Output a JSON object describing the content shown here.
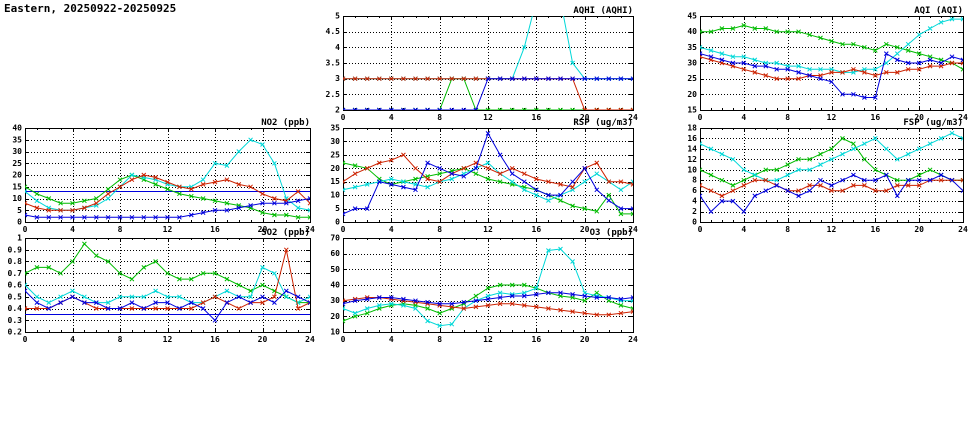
{
  "title": "Eastern, 20250922-20250925",
  "series_colors": {
    "blue": "#0000dd",
    "red": "#cc2200",
    "green": "#00bb00",
    "cyan": "#00d8d8"
  },
  "chart_data": [
    {
      "id": "aqhi",
      "type": "line",
      "title": "AQHI (AQHI)",
      "x_min": 0,
      "x_max": 24,
      "x_ticks": [
        0,
        4,
        8,
        12,
        16,
        20,
        24
      ],
      "x_tick_labels": [
        "0",
        "4",
        "8",
        "12",
        "16",
        "20",
        "24"
      ],
      "y_min": 2,
      "y_max": 5,
      "y_ticks": [
        2,
        2.5,
        3,
        3.5,
        4,
        4.5,
        5
      ],
      "y_tick_labels": [
        "2",
        "2.5",
        "3",
        "3.5",
        "4",
        "4.5",
        "5"
      ],
      "series": [
        {
          "color": "green",
          "values": [
            2,
            2,
            2,
            2,
            2,
            2,
            2,
            2,
            2,
            3,
            3,
            2,
            2,
            2,
            2,
            2,
            2,
            2,
            2,
            2,
            2,
            2,
            2,
            2,
            2
          ]
        },
        {
          "color": "cyan",
          "values": [
            3,
            3,
            3,
            3,
            3,
            3,
            3,
            3,
            3,
            3,
            3,
            3,
            3,
            3,
            3,
            4,
            5.5,
            6,
            5.5,
            3.5,
            3,
            3,
            3,
            3,
            3
          ]
        },
        {
          "color": "red",
          "values": [
            3,
            3,
            3,
            3,
            3,
            3,
            3,
            3,
            3,
            3,
            3,
            3,
            3,
            3,
            3,
            3,
            3,
            3,
            3,
            3,
            2,
            2,
            2,
            2,
            2
          ]
        },
        {
          "color": "blue",
          "values": [
            2,
            2,
            2,
            2,
            2,
            2,
            2,
            2,
            2,
            2,
            2,
            2,
            3,
            3,
            3,
            3,
            3,
            3,
            3,
            3,
            3,
            3,
            3,
            3,
            3
          ]
        }
      ]
    },
    {
      "id": "aqi",
      "type": "line",
      "title": "AQI (AQI)",
      "x_min": 0,
      "x_max": 24,
      "x_ticks": [
        0,
        4,
        8,
        12,
        16,
        20,
        24
      ],
      "x_tick_labels": [
        "0",
        "4",
        "8",
        "12",
        "16",
        "20",
        "24"
      ],
      "y_min": 15,
      "y_max": 45,
      "y_ticks": [
        15,
        20,
        25,
        30,
        35,
        40,
        45
      ],
      "y_tick_labels": [
        "15",
        "20",
        "25",
        "30",
        "35",
        "40",
        "45"
      ],
      "series": [
        {
          "color": "green",
          "values": [
            40,
            40,
            41,
            41,
            42,
            41,
            41,
            40,
            40,
            40,
            39,
            38,
            37,
            36,
            36,
            35,
            34,
            36,
            35,
            34,
            33,
            32,
            31,
            30,
            28
          ]
        },
        {
          "color": "cyan",
          "values": [
            35,
            34,
            33,
            32,
            32,
            31,
            30,
            30,
            29,
            29,
            28,
            28,
            28,
            27,
            27,
            28,
            28,
            30,
            33,
            36,
            39,
            41,
            43,
            44,
            44
          ]
        },
        {
          "color": "red",
          "values": [
            32,
            31,
            30,
            29,
            28,
            27,
            26,
            25,
            25,
            25,
            26,
            26,
            27,
            27,
            28,
            27,
            26,
            27,
            27,
            28,
            28,
            29,
            29,
            30,
            30
          ]
        },
        {
          "color": "blue",
          "values": [
            33,
            32,
            31,
            30,
            30,
            29,
            29,
            28,
            28,
            27,
            26,
            25,
            24,
            20,
            20,
            19,
            19,
            33,
            31,
            30,
            30,
            31,
            30,
            32,
            31
          ]
        }
      ]
    },
    {
      "id": "no2",
      "type": "line",
      "title": "NO2 (ppb)",
      "x_min": 0,
      "x_max": 24,
      "x_ticks": [
        0,
        4,
        8,
        12,
        16,
        20,
        24
      ],
      "x_tick_labels": [
        "0",
        "4",
        "8",
        "12",
        "16",
        "20",
        "24"
      ],
      "y_min": 0,
      "y_max": 40,
      "y_ticks": [
        0,
        5,
        10,
        15,
        20,
        25,
        30,
        35,
        40
      ],
      "y_tick_labels": [
        "0",
        "5",
        "10",
        "15",
        "20",
        "25",
        "30",
        "35",
        "40"
      ],
      "ref_line": 13,
      "series": [
        {
          "color": "green",
          "values": [
            15,
            12,
            10,
            8,
            8,
            9,
            10,
            14,
            18,
            20,
            18,
            16,
            14,
            12,
            11,
            10,
            9,
            8,
            7,
            6,
            4,
            3,
            3,
            2,
            2
          ]
        },
        {
          "color": "cyan",
          "values": [
            13,
            9,
            6,
            5,
            5,
            6,
            7,
            10,
            15,
            20,
            19,
            18,
            16,
            15,
            15,
            18,
            25,
            24,
            30,
            35,
            33,
            25,
            10,
            6,
            5
          ]
        },
        {
          "color": "red",
          "values": [
            8,
            6,
            5,
            5,
            5,
            6,
            8,
            12,
            15,
            18,
            20,
            19,
            17,
            15,
            14,
            16,
            17,
            18,
            16,
            15,
            12,
            10,
            9,
            13,
            8
          ]
        },
        {
          "color": "blue",
          "values": [
            3,
            2,
            2,
            2,
            2,
            2,
            2,
            2,
            2,
            2,
            2,
            2,
            2,
            2,
            3,
            4,
            5,
            5,
            6,
            7,
            8,
            8,
            8,
            9,
            10
          ]
        }
      ]
    },
    {
      "id": "rsp",
      "type": "line",
      "title": "RSP (ug/m3)",
      "x_min": 0,
      "x_max": 24,
      "x_ticks": [
        0,
        4,
        8,
        12,
        16,
        20,
        24
      ],
      "x_tick_labels": [
        "0",
        "4",
        "8",
        "12",
        "16",
        "20",
        "24"
      ],
      "y_min": 0,
      "y_max": 35,
      "y_ticks": [
        0,
        5,
        10,
        15,
        20,
        25,
        30,
        35
      ],
      "y_tick_labels": [
        "0",
        "5",
        "10",
        "15",
        "20",
        "25",
        "30",
        "35"
      ],
      "series": [
        {
          "color": "green",
          "values": [
            22,
            21,
            20,
            16,
            14,
            15,
            16,
            17,
            18,
            19,
            20,
            18,
            16,
            15,
            14,
            13,
            12,
            10,
            8,
            6,
            5,
            4,
            10,
            3,
            3
          ]
        },
        {
          "color": "cyan",
          "values": [
            12,
            13,
            14,
            15,
            16,
            15,
            14,
            13,
            15,
            16,
            18,
            20,
            22,
            18,
            15,
            12,
            10,
            8,
            10,
            12,
            15,
            18,
            15,
            12,
            15
          ]
        },
        {
          "color": "red",
          "values": [
            15,
            18,
            20,
            22,
            23,
            25,
            20,
            16,
            15,
            18,
            20,
            22,
            20,
            18,
            20,
            18,
            16,
            15,
            14,
            13,
            20,
            22,
            15,
            15,
            14
          ]
        },
        {
          "color": "blue",
          "values": [
            3,
            5,
            5,
            15,
            14,
            13,
            12,
            22,
            20,
            18,
            17,
            20,
            33,
            25,
            18,
            15,
            12,
            10,
            10,
            15,
            20,
            12,
            8,
            5,
            5
          ]
        }
      ]
    },
    {
      "id": "fsp",
      "type": "line",
      "title": "FSP (ug/m3)",
      "x_min": 0,
      "x_max": 24,
      "x_ticks": [
        0,
        4,
        8,
        12,
        16,
        20,
        24
      ],
      "x_tick_labels": [
        "0",
        "4",
        "8",
        "12",
        "16",
        "20",
        "24"
      ],
      "y_min": 0,
      "y_max": 18,
      "y_ticks": [
        0,
        2,
        4,
        6,
        8,
        10,
        12,
        14,
        16,
        18
      ],
      "y_tick_labels": [
        "0",
        "2",
        "4",
        "6",
        "8",
        "10",
        "12",
        "14",
        "16",
        "18"
      ],
      "series": [
        {
          "color": "green",
          "values": [
            10,
            9,
            8,
            7,
            8,
            9,
            10,
            10,
            11,
            12,
            12,
            13,
            14,
            16,
            15,
            12,
            10,
            9,
            8,
            8,
            9,
            10,
            9,
            8,
            8
          ]
        },
        {
          "color": "cyan",
          "values": [
            15,
            14,
            13,
            12,
            10,
            9,
            8,
            8,
            9,
            10,
            10,
            11,
            12,
            13,
            14,
            15,
            16,
            14,
            12,
            13,
            14,
            15,
            16,
            17,
            16
          ]
        },
        {
          "color": "red",
          "values": [
            7,
            6,
            5,
            6,
            7,
            8,
            8,
            7,
            6,
            6,
            7,
            7,
            6,
            6,
            7,
            7,
            6,
            6,
            7,
            7,
            7,
            8,
            8,
            8,
            8
          ]
        },
        {
          "color": "blue",
          "values": [
            5,
            2,
            4,
            4,
            2,
            5,
            6,
            7,
            6,
            5,
            6,
            8,
            7,
            8,
            9,
            8,
            8,
            9,
            5,
            8,
            8,
            8,
            9,
            8,
            6
          ]
        }
      ]
    },
    {
      "id": "so2",
      "type": "line",
      "title": "SO2 (ppb)",
      "x_min": 0,
      "x_max": 24,
      "x_ticks": [
        0,
        4,
        8,
        12,
        16,
        20,
        24
      ],
      "x_tick_labels": [
        "0",
        "4",
        "8",
        "12",
        "16",
        "20",
        "24"
      ],
      "y_min": 0.2,
      "y_max": 1.0,
      "y_ticks": [
        0.2,
        0.3,
        0.4,
        0.5,
        0.6,
        0.7,
        0.8,
        0.9,
        1.0
      ],
      "y_tick_labels": [
        "0.2",
        "0.3",
        "0.4",
        "0.5",
        "0.6",
        "0.7",
        "0.8",
        "0.9",
        "1"
      ],
      "ref_line": 0.35,
      "series": [
        {
          "color": "green",
          "values": [
            0.7,
            0.75,
            0.75,
            0.7,
            0.8,
            0.95,
            0.85,
            0.8,
            0.7,
            0.65,
            0.75,
            0.8,
            0.7,
            0.65,
            0.65,
            0.7,
            0.7,
            0.65,
            0.6,
            0.55,
            0.6,
            0.55,
            0.5,
            0.45,
            0.45
          ]
        },
        {
          "color": "cyan",
          "values": [
            0.6,
            0.5,
            0.45,
            0.5,
            0.55,
            0.5,
            0.45,
            0.45,
            0.5,
            0.5,
            0.5,
            0.55,
            0.5,
            0.5,
            0.45,
            0.45,
            0.5,
            0.55,
            0.5,
            0.5,
            0.75,
            0.7,
            0.5,
            0.45,
            0.5
          ]
        },
        {
          "color": "red",
          "values": [
            0.4,
            0.4,
            0.4,
            0.45,
            0.5,
            0.45,
            0.4,
            0.4,
            0.4,
            0.4,
            0.4,
            0.4,
            0.4,
            0.4,
            0.4,
            0.45,
            0.5,
            0.45,
            0.4,
            0.45,
            0.45,
            0.5,
            0.9,
            0.4,
            0.45
          ]
        },
        {
          "color": "blue",
          "values": [
            0.55,
            0.45,
            0.4,
            0.45,
            0.5,
            0.45,
            0.45,
            0.4,
            0.4,
            0.45,
            0.4,
            0.45,
            0.45,
            0.4,
            0.45,
            0.4,
            0.3,
            0.45,
            0.5,
            0.45,
            0.5,
            0.45,
            0.55,
            0.5,
            0.45
          ]
        }
      ]
    },
    {
      "id": "o3",
      "type": "line",
      "title": "O3 (ppb)",
      "x_min": 0,
      "x_max": 24,
      "x_ticks": [
        0,
        4,
        8,
        12,
        16,
        20,
        24
      ],
      "x_tick_labels": [
        "0",
        "4",
        "8",
        "12",
        "16",
        "20",
        "24"
      ],
      "y_min": 10,
      "y_max": 70,
      "y_ticks": [
        10,
        20,
        30,
        40,
        50,
        60,
        70
      ],
      "y_tick_labels": [
        "10",
        "20",
        "30",
        "40",
        "50",
        "60",
        "70"
      ],
      "series": [
        {
          "color": "green",
          "values": [
            17,
            20,
            22,
            25,
            27,
            28,
            27,
            25,
            22,
            25,
            28,
            33,
            38,
            40,
            40,
            40,
            38,
            35,
            33,
            32,
            30,
            35,
            30,
            27,
            25
          ]
        },
        {
          "color": "cyan",
          "values": [
            25,
            22,
            25,
            27,
            28,
            27,
            25,
            17,
            14,
            15,
            25,
            30,
            33,
            35,
            34,
            35,
            38,
            62,
            63,
            55,
            35,
            33,
            32,
            30,
            30
          ]
        },
        {
          "color": "red",
          "values": [
            30,
            31,
            32,
            32,
            31,
            30,
            29,
            28,
            27,
            26,
            25,
            26,
            27,
            28,
            28,
            27,
            26,
            25,
            24,
            23,
            22,
            21,
            21,
            22,
            23
          ]
        },
        {
          "color": "blue",
          "values": [
            28,
            30,
            31,
            32,
            32,
            31,
            30,
            29,
            28,
            28,
            29,
            30,
            31,
            32,
            33,
            33,
            34,
            35,
            35,
            34,
            33,
            32,
            32,
            31,
            32
          ]
        }
      ]
    }
  ]
}
